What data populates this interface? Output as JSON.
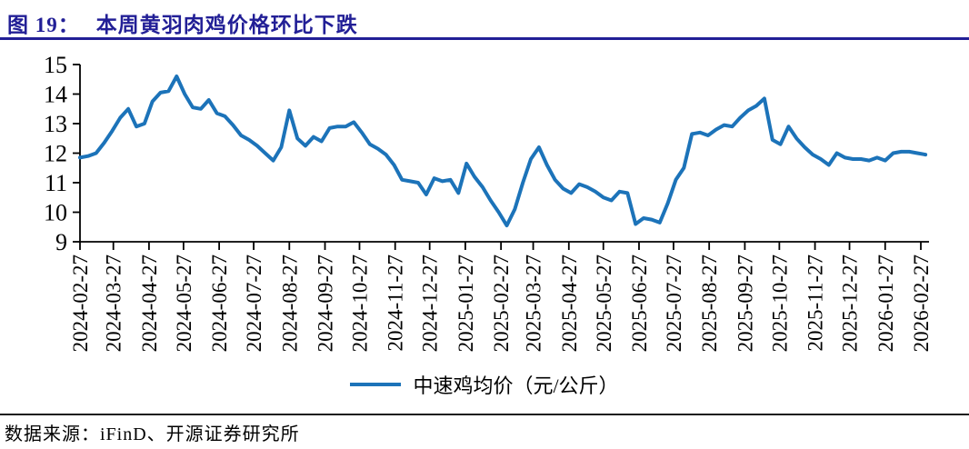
{
  "header": {
    "figure_label": "图 19：",
    "figure_title": "本周黄羽肉鸡价格环比下跌"
  },
  "colors": {
    "title": "#221f96",
    "line": "#1c73b9",
    "axis": "#000000"
  },
  "chart_data": {
    "type": "line",
    "title": "本周黄羽肉鸡价格环比下跌",
    "xlabel": "",
    "ylabel": "",
    "ylim": [
      9,
      15
    ],
    "y_ticks": [
      9,
      10,
      11,
      12,
      13,
      14,
      15
    ],
    "grid": false,
    "legend_position": "bottom-center",
    "x_tick_labels": [
      "2024-02-27",
      "2024-03-27",
      "2024-04-27",
      "2024-05-27",
      "2024-06-27",
      "2024-07-27",
      "2024-08-27",
      "2024-09-27",
      "2024-10-27",
      "2024-11-27",
      "2024-12-27",
      "2025-01-27",
      "2025-02-27",
      "2025-03-27",
      "2025-04-27",
      "2025-05-27",
      "2025-06-27",
      "2025-07-27",
      "2025-08-27",
      "2025-09-27",
      "2025-10-27",
      "2025-11-27",
      "2025-12-27",
      "2026-01-27",
      "2026-02-27"
    ],
    "series": [
      {
        "name": "中速鸡均价（元/公斤）",
        "color": "#1c73b9",
        "start_date": "2024-02-27",
        "interval_days": 7,
        "values": [
          11.85,
          11.9,
          12.0,
          12.35,
          12.75,
          13.2,
          13.5,
          12.9,
          13.0,
          13.75,
          14.05,
          14.1,
          14.6,
          14.0,
          13.55,
          13.5,
          13.8,
          13.35,
          13.25,
          12.95,
          12.6,
          12.45,
          12.25,
          12.0,
          11.75,
          12.2,
          13.45,
          12.5,
          12.25,
          12.55,
          12.4,
          12.85,
          12.9,
          12.9,
          13.05,
          12.7,
          12.3,
          12.15,
          11.95,
          11.6,
          11.1,
          11.05,
          11.0,
          10.6,
          11.15,
          11.05,
          11.1,
          10.65,
          11.65,
          11.2,
          10.85,
          10.4,
          10.0,
          9.55,
          10.1,
          11.0,
          11.8,
          12.2,
          11.6,
          11.1,
          10.8,
          10.65,
          10.95,
          10.85,
          10.7,
          10.5,
          10.4,
          10.7,
          10.65,
          9.6,
          9.8,
          9.75,
          9.65,
          10.3,
          11.1,
          11.5,
          12.65,
          12.7,
          12.6,
          12.8,
          12.95,
          12.9,
          13.2,
          13.45,
          13.6,
          13.85,
          12.45,
          12.3,
          12.9,
          12.5,
          12.2,
          11.95,
          11.8,
          11.6,
          12.0,
          11.85,
          11.8,
          11.8,
          11.75,
          11.85,
          11.75,
          12.0,
          12.05,
          12.05,
          12.0,
          11.95
        ]
      }
    ]
  },
  "footer": {
    "source": "数据来源：iFinD、开源证券研究所"
  }
}
